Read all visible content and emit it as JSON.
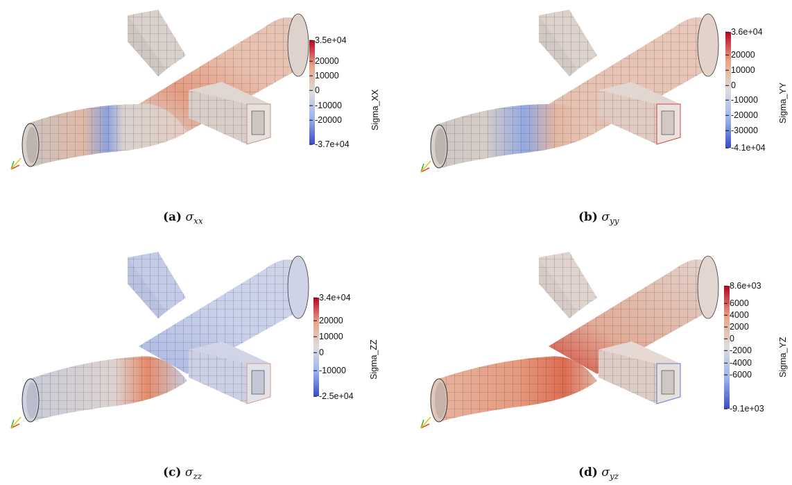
{
  "panels": [
    {
      "id": "a",
      "caption_label": "(a)",
      "caption_symbol": "σ",
      "caption_sub": "xx",
      "colorbar": {
        "title": "Sigma_XX",
        "ticks": [
          "3.5e+04",
          "20000",
          "10000",
          "0",
          "-10000",
          "-20000",
          "-3.7e+04"
        ],
        "range": [
          -37000,
          35000
        ]
      }
    },
    {
      "id": "b",
      "caption_label": "(b)",
      "caption_symbol": "σ",
      "caption_sub": "yy",
      "colorbar": {
        "title": "Sigma_YY",
        "ticks": [
          "3.6e+04",
          "20000",
          "10000",
          "0",
          "-10000",
          "-20000",
          "-30000",
          "-4.1e+04"
        ],
        "range": [
          -41000,
          36000
        ]
      }
    },
    {
      "id": "c",
      "caption_label": "(c)",
      "caption_symbol": "σ",
      "caption_sub": "zz",
      "colorbar": {
        "title": "Sigma_ZZ",
        "ticks": [
          "3.4e+04",
          "20000",
          "10000",
          "0",
          "-10000",
          "-2.5e+04"
        ],
        "range": [
          -25000,
          34000
        ]
      }
    },
    {
      "id": "d",
      "caption_label": "(d)",
      "caption_symbol": "σ",
      "caption_sub": "yz",
      "colorbar": {
        "title": "Sigma_YZ",
        "ticks": [
          "8.6e+03",
          "6000",
          "4000",
          "2000",
          "0",
          "-2000",
          "-4000",
          "-6000",
          "-9.1e+03"
        ],
        "range": [
          -9100,
          8600
        ]
      }
    }
  ],
  "colors": {
    "high": "#b40426",
    "mid": "#dddddd",
    "low": "#3b4cc0"
  }
}
